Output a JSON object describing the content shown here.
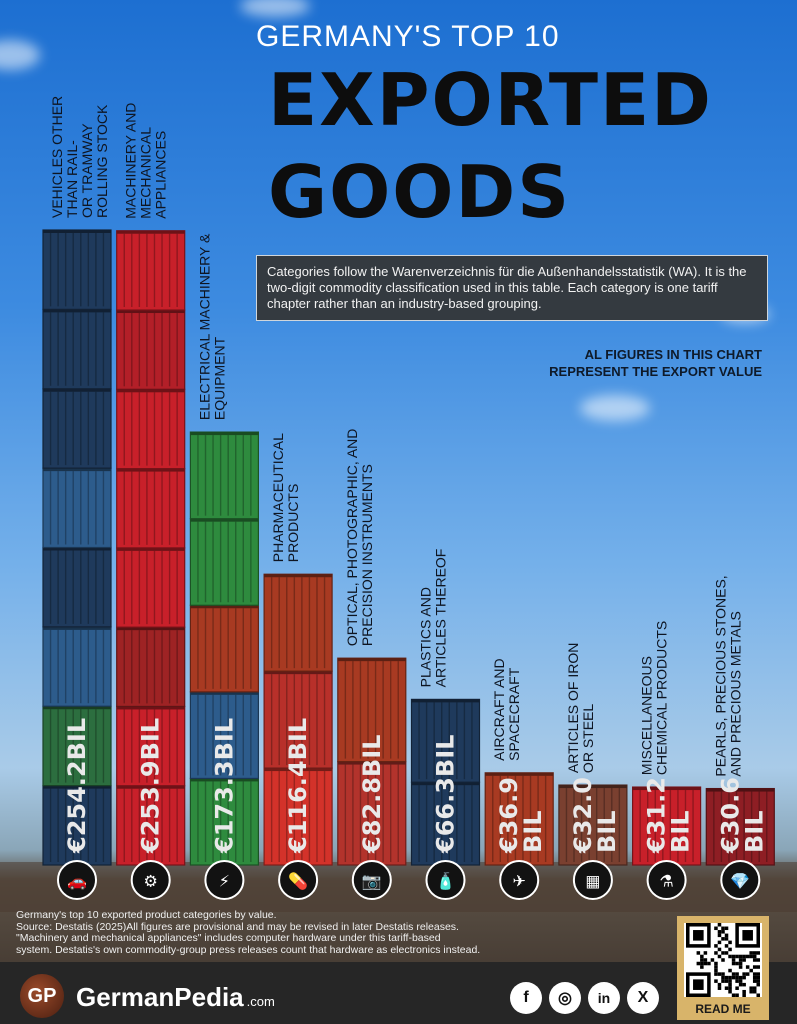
{
  "header": {
    "title_small": "GERMANY'S TOP 10",
    "title_line1": "EXPORTED",
    "title_line2": "GOODS"
  },
  "note": "Categories follow the Warenverzeichnis für die Außenhandelsstatistik (WA). It is the two-digit commodity classification used in this table. Each category is one tariff chapter rather than an industry-based grouping.",
  "figures_note": [
    "AL FIGURES IN THIS CHART",
    "REPRESENT THE EXPORT VALUE"
  ],
  "chart_data": {
    "type": "bar",
    "categories": [
      "VEHICLES OTHER THAN RAIL- OR TRAMWAY ROLLING STOCK",
      "MACHINERY AND MECHANICAL APPLIANCES",
      "ELECTRICAL MACHINERY & EQUIPMENT",
      "PHARMACEUTICAL PRODUCTS",
      "OPTICAL, PHOTOGRAPHIC, AND PRECISION INSTRUMENTS",
      "PLASTICS AND ARTICLES THEREOF",
      "AIRCRAFT AND SPACECRAFT",
      "ARTICLES OF IRON OR STEEL",
      "MISCELLANEOUS CHEMICAL PRODUCTS",
      "PEARLS, PRECIOUS STONES, AND PRECIOUS METALS"
    ],
    "category_lines": [
      [
        "VEHICLES OTHER",
        "THAN RAIL-",
        "OR TRAMWAY",
        "ROLLING STOCK"
      ],
      [
        "MACHINERY AND",
        "MECHANICAL",
        "APPLIANCES"
      ],
      [
        "ELECTRICAL MACHINERY &",
        "EQUIPMENT"
      ],
      [
        "PHARMACEUTICAL",
        "PRODUCTS"
      ],
      [
        "OPTICAL, PHOTOGRAPHIC, AND",
        "PRECISION INSTRUMENTS"
      ],
      [
        "PLASTICS AND",
        "ARTICLES THEREOF"
      ],
      [
        "AIRCRAFT AND",
        "SPACECRAFT"
      ],
      [
        "ARTICLES OF IRON",
        "OR STEEL"
      ],
      [
        "MISCELLANEOUS",
        "CHEMICAL PRODUCTS"
      ],
      [
        "PEARLS, PRECIOUS STONES,",
        "AND PRECIOUS METALS"
      ]
    ],
    "values": [
      254.2,
      253.9,
      173.3,
      116.4,
      82.8,
      66.3,
      36.9,
      32.0,
      31.2,
      30.6
    ],
    "value_labels": [
      [
        "€254.2BIL"
      ],
      [
        "€253.9BIL"
      ],
      [
        "€173.3BIL"
      ],
      [
        "€116.4BIL"
      ],
      [
        "€82.8BIL"
      ],
      [
        "€66.3BIL"
      ],
      [
        "€36.9",
        "BIL"
      ],
      [
        "€32.0",
        "BIL"
      ],
      [
        "€31.2",
        "BIL"
      ],
      [
        "€30.6",
        "BIL"
      ]
    ],
    "icons": [
      "car-icon",
      "gears-icon",
      "motor-icon",
      "pills-icon",
      "camera-icon",
      "bottle-icon",
      "airplane-icon",
      "steel-beam-icon",
      "flask-icon",
      "gem-icon"
    ],
    "icon_glyphs": [
      "🚗",
      "⚙",
      "⚡",
      "💊",
      "📷",
      "🧴",
      "✈",
      "▦",
      "⚗",
      "💎"
    ],
    "unit": "€ billion",
    "ylim": [
      0,
      254.2
    ],
    "container_colors": [
      [
        "#1f3a5c",
        "#2c6e3f",
        "#2d5c8c",
        "#1f3a5c",
        "#2d5c8c",
        "#1f3a5c",
        "#1f3a5c",
        "#1f3a5c"
      ],
      [
        "#c8202a",
        "#c8202a",
        "#9e2324",
        "#c8202a",
        "#c8202a",
        "#c8202a",
        "#b31f28",
        "#c8202a"
      ],
      [
        "#2e8b3e",
        "#2d5c8c",
        "#a83a22",
        "#2e8b3e",
        "#2e8b3e"
      ],
      [
        "#d3322a",
        "#b8302a",
        "#a83a22"
      ],
      [
        "#b3332c",
        "#a83a22"
      ],
      [
        "#1f3a5c",
        "#1f3a5c"
      ],
      [
        "#a83a22"
      ],
      [
        "#7a4030"
      ],
      [
        "#c8202a"
      ],
      [
        "#8e1e24"
      ]
    ]
  },
  "footer": {
    "lines": [
      "Germany's top 10 exported product categories by value.",
      "Source: Destatis (2025)All figures are provisional and may be revised in later Destatis releases.",
      "\"Machinery and mechanical appliances\" includes computer hardware under this tariff-based",
      "system. Destatis's own commodity-group press releases count that hardware as electronics instead."
    ]
  },
  "brand": {
    "logo": "GP",
    "name": "GermanPedia",
    "tld": ".com"
  },
  "social": [
    "f",
    "◎",
    "in",
    "X"
  ],
  "qr": {
    "label": "READ ME"
  }
}
